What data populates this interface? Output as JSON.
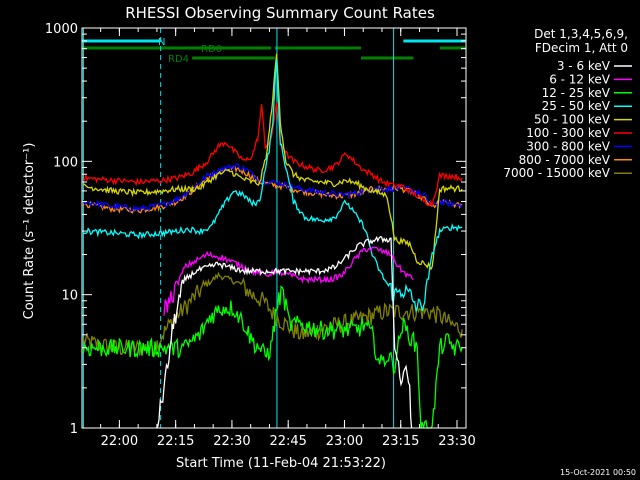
{
  "chart_data": {
    "type": "line",
    "title": "RHESSI Observing Summary Count Rates",
    "xlabel": "Start Time (11-Feb-04 21:53:22)",
    "ylabel": "Count Rate (s⁻¹ detector⁻¹)",
    "y_scale": "log",
    "ylim": [
      1,
      1000
    ],
    "xlim_minutes": [
      -3.37,
      99.0
    ],
    "x_ticks": [
      {
        "minutes": 6.6,
        "label": "22:00"
      },
      {
        "minutes": 21.6,
        "label": "22:15"
      },
      {
        "minutes": 36.6,
        "label": "22:30"
      },
      {
        "minutes": 51.6,
        "label": "22:45"
      },
      {
        "minutes": 66.6,
        "label": "23:00"
      },
      {
        "minutes": 81.6,
        "label": "23:15"
      },
      {
        "minutes": 96.6,
        "label": "23:30"
      }
    ],
    "y_ticks": [
      {
        "value": 1,
        "label": "1"
      },
      {
        "value": 10,
        "label": "10"
      },
      {
        "value": 100,
        "label": "100"
      },
      {
        "value": 1000,
        "label": "1000"
      }
    ],
    "legend": {
      "placement": "right",
      "header": [
        "Det 1,3,4,5,6,9,",
        "FDecim 1, Att 0"
      ]
    },
    "flags": [
      {
        "name": "N",
        "color": "#00e5ee",
        "intervals": [
          [
            -3.4,
            17.5
          ],
          [
            82.3,
            98.8
          ]
        ]
      },
      {
        "name": "RD0",
        "color": "#008000",
        "intervals": [
          [
            -3.4,
            47.0
          ],
          [
            48.0,
            71.0
          ],
          [
            92.0,
            98.8
          ]
        ]
      },
      {
        "name": "RD4",
        "color": "#008000",
        "intervals": [
          [
            26.0,
            48.0
          ],
          [
            71.0,
            85.0
          ]
        ]
      }
    ],
    "vlines": [
      {
        "minutes": -3.0,
        "style": "solid",
        "color": "#00e5ee"
      },
      {
        "minutes": 17.6,
        "style": "dashed",
        "color": "#00e5ee"
      },
      {
        "minutes": 48.6,
        "style": "solid",
        "color": "#00e5ee"
      },
      {
        "minutes": 79.7,
        "style": "solid",
        "color": "#00e5ee"
      },
      {
        "minutes": 99.0,
        "style": "dashed",
        "color": "#00e5ee"
      }
    ],
    "series": [
      {
        "name": "3 - 6 keV",
        "color": "#ffffff",
        "x": [
          16.5,
          17.5,
          18.5,
          19.5,
          21.0,
          22.5,
          24.0,
          27.0,
          30.0,
          33.0,
          36.0,
          40.0,
          44.0,
          48.0,
          52.0,
          56.0,
          60.0,
          64.0,
          67.0,
          70.0,
          73.0,
          75.5,
          77.5,
          79.0,
          80.0,
          81.0,
          82.0,
          83.0,
          84.0,
          84.5
        ],
        "y": [
          1.0,
          1.4,
          2.0,
          3.0,
          6.0,
          9.0,
          13.0,
          15.0,
          16.0,
          17.0,
          16.0,
          15.0,
          15.0,
          15.0,
          15.0,
          15.0,
          15.0,
          16.0,
          19.0,
          23.0,
          25.0,
          26.0,
          26.0,
          26.0,
          4.0,
          3.0,
          2.0,
          3.0,
          2.0,
          1.0
        ]
      },
      {
        "name": "6 - 12 keV",
        "color": "#ff00ff",
        "x": [
          18.5,
          20.0,
          22.0,
          24.0,
          27.0,
          30.0,
          34.0,
          38.0,
          42.0,
          46.0,
          48.0,
          52.0,
          56.0,
          60.0,
          63.0,
          66.0,
          69.0,
          72.0,
          75.0,
          77.0,
          79.0,
          80.5,
          82.0,
          85.0
        ],
        "y": [
          8.0,
          9.0,
          12.0,
          16.0,
          18.0,
          20.0,
          19.0,
          17.0,
          15.0,
          14.0,
          15.0,
          14.0,
          13.0,
          13.0,
          13.0,
          14.0,
          18.0,
          22.0,
          22.0,
          21.0,
          20.0,
          17.0,
          15.0,
          13.0
        ]
      },
      {
        "name": "12 - 25 keV",
        "color": "#00ff00",
        "x": [
          -3.0,
          5.0,
          12.0,
          18.0,
          21.0,
          24.0,
          26.0,
          28.0,
          31.0,
          34.0,
          37.0,
          40.0,
          42.0,
          44.0,
          45.5,
          47.0,
          48.5,
          50.0,
          52.0,
          55.0,
          60.0,
          65.0,
          70.0,
          72.0,
          74.0,
          76.0,
          78.0,
          80.0,
          82.0,
          84.0,
          86.0,
          87.0,
          88.0,
          90.0,
          92.0,
          94.0,
          96.0,
          98.0
        ],
        "y": [
          4.0,
          4.0,
          4.0,
          4.0,
          4.0,
          4.0,
          4.5,
          5.0,
          7.0,
          8.0,
          8.0,
          6.0,
          4.5,
          4.0,
          3.5,
          4.0,
          8.0,
          11.0,
          6.0,
          6.0,
          5.5,
          5.5,
          5.5,
          6.0,
          5.0,
          3.0,
          3.5,
          3.0,
          6.0,
          5.0,
          4.0,
          1.0,
          1.0,
          1.0,
          4.0,
          4.5,
          4.0,
          4.0
        ]
      },
      {
        "name": "25 - 50 keV",
        "color": "#00ffff",
        "x": [
          -3.0,
          5.0,
          12.0,
          18.0,
          22.0,
          25.0,
          28.0,
          31.0,
          34.0,
          37.0,
          40.0,
          42.0,
          44.0,
          45.5,
          46.5,
          47.5,
          48.5,
          49.5,
          51.0,
          53.0,
          56.0,
          60.0,
          64.0,
          67.0,
          70.0,
          72.0,
          74.0,
          76.0,
          78.0,
          80.0,
          82.0,
          84.0,
          86.0,
          88.0,
          90.0,
          92.0,
          95.0,
          98.0
        ],
        "y": [
          30.0,
          29.0,
          28.0,
          29.0,
          30.0,
          31.0,
          30.0,
          32.0,
          45.0,
          60.0,
          55.0,
          48.0,
          50.0,
          90.0,
          120.0,
          200.0,
          580.0,
          140.0,
          90.0,
          50.0,
          38.0,
          36.0,
          38.0,
          50.0,
          38.0,
          32.0,
          20.0,
          15.0,
          12.0,
          10.0,
          11.0,
          10.0,
          8.0,
          9.0,
          20.0,
          30.0,
          32.0,
          32.0
        ]
      },
      {
        "name": "50 - 100 keV",
        "color": "#d8d800",
        "x": [
          -3.0,
          5.0,
          12.0,
          18.0,
          22.0,
          26.0,
          28.0,
          30.0,
          33.0,
          36.0,
          39.0,
          42.0,
          44.0,
          46.0,
          47.5,
          48.5,
          49.5,
          51.0,
          53.0,
          56.0,
          60.0,
          64.0,
          67.0,
          70.0,
          72.0,
          74.0,
          76.0,
          78.0,
          80.0,
          82.0,
          84.0,
          86.0,
          88.0,
          90.0,
          92.0,
          95.0,
          98.0
        ],
        "y": [
          65.0,
          60.0,
          58.0,
          60.0,
          62.0,
          62.0,
          63.0,
          70.0,
          80.0,
          85.0,
          75.0,
          70.0,
          68.0,
          120.0,
          300.0,
          650.0,
          200.0,
          100.0,
          80.0,
          72.0,
          70.0,
          68.0,
          72.0,
          68.0,
          63.0,
          60.0,
          58.0,
          55.0,
          26.0,
          25.0,
          24.0,
          18.0,
          17.0,
          16.0,
          62.0,
          63.0,
          62.0
        ]
      },
      {
        "name": "100 - 300 keV",
        "color": "#ff0000",
        "x": [
          -3.0,
          5.0,
          12.0,
          18.0,
          22.0,
          26.0,
          30.0,
          33.0,
          35.0,
          37.0,
          40.0,
          42.0,
          43.5,
          44.5,
          45.5,
          47.0,
          48.5,
          49.5,
          51.0,
          53.0,
          56.0,
          60.0,
          64.0,
          67.0,
          70.0,
          72.0,
          74.0,
          76.0,
          78.0,
          80.0,
          82.0,
          84.0,
          86.0,
          88.0,
          90.0,
          92.0,
          95.0,
          98.0
        ],
        "y": [
          75.0,
          72.0,
          70.0,
          72.0,
          75.0,
          82.0,
          100.0,
          130.0,
          140.0,
          120.0,
          100.0,
          110.0,
          150.0,
          260.0,
          130.0,
          140.0,
          280.0,
          140.0,
          115.0,
          100.0,
          92.0,
          85.0,
          92.0,
          115.0,
          95.0,
          85.0,
          80.0,
          72.0,
          68.0,
          66.0,
          65.0,
          60.0,
          55.0,
          50.0,
          48.0,
          78.0,
          78.0,
          75.0
        ]
      },
      {
        "name": "300 - 800 keV",
        "color": "#0000ff",
        "x": [
          -3.0,
          5.0,
          12.0,
          18.0,
          22.0,
          26.0,
          30.0,
          34.0,
          38.0,
          41.0,
          44.0,
          47.0,
          50.0,
          54.0,
          58.0,
          62.0,
          66.0,
          70.0,
          74.0,
          78.0,
          81.0,
          84.0,
          88.0,
          90.0,
          92.0,
          95.0,
          98.0
        ],
        "y": [
          50.0,
          46.0,
          44.0,
          47.0,
          52.0,
          62.0,
          78.0,
          88.0,
          93.0,
          85.0,
          72.0,
          70.0,
          68.0,
          63.0,
          60.0,
          58.0,
          56.0,
          58.0,
          63.0,
          62.0,
          63.0,
          62.0,
          55.0,
          46.0,
          50.0,
          48.0,
          47.0
        ]
      },
      {
        "name": "800 - 7000 keV",
        "color": "#ff8c00",
        "x": [
          -3.0,
          5.0,
          12.0,
          18.0,
          22.0,
          26.0,
          30.0,
          34.0,
          38.0,
          41.0,
          44.0,
          47.0,
          50.0,
          54.0,
          58.0,
          62.0,
          66.0,
          70.0,
          74.0,
          78.0,
          81.0,
          84.0,
          88.0,
          90.0,
          92.0,
          95.0,
          98.0
        ],
        "y": [
          48.0,
          44.0,
          43.0,
          46.0,
          50.0,
          60.0,
          75.0,
          85.0,
          88.0,
          80.0,
          70.0,
          67.0,
          65.0,
          61.0,
          58.0,
          56.0,
          55.0,
          57.0,
          62.0,
          62.0,
          63.0,
          60.0,
          52.0,
          45.0,
          50.0,
          48.0,
          46.0
        ]
      },
      {
        "name": "7000 - 15000 keV",
        "color": "#808000",
        "x": [
          -3.0,
          5.0,
          12.0,
          16.0,
          18.0,
          20.0,
          22.0,
          24.0,
          27.0,
          30.0,
          33.0,
          36.0,
          39.0,
          42.0,
          45.0,
          48.0,
          51.0,
          55.0,
          60.0,
          65.0,
          70.0,
          74.0,
          77.0,
          80.0,
          83.0,
          86.0,
          89.0,
          92.0,
          95.0,
          98.0
        ],
        "y": [
          4.5,
          4.0,
          4.0,
          4.0,
          5.0,
          6.0,
          7.0,
          8.0,
          10.0,
          12.0,
          14.0,
          13.0,
          12.0,
          10.0,
          9.0,
          7.0,
          6.0,
          5.0,
          5.5,
          6.0,
          6.5,
          7.0,
          7.5,
          7.5,
          7.5,
          7.5,
          7.5,
          7.0,
          6.0,
          5.5
        ]
      }
    ]
  },
  "footer": {
    "timestamp": "15-Oct-2021 00:50"
  }
}
